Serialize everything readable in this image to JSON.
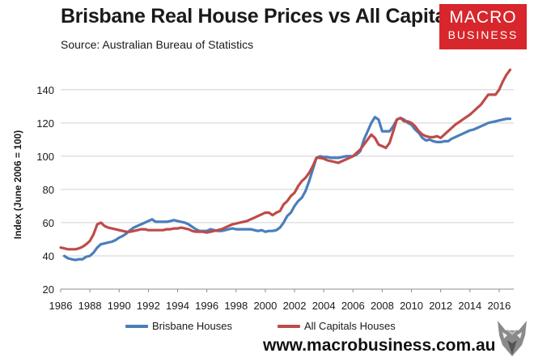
{
  "header": {
    "title": "Brisbane Real House Prices vs All Capitals",
    "subtitle": "Source: Australian Bureau of Statistics"
  },
  "logo": {
    "line1": "MACRO",
    "line2": "BUSINESS"
  },
  "footer": {
    "website": "www.macrobusiness.com.au"
  },
  "colors": {
    "brisbane": "#4a7ebb",
    "capitals": "#be4b48",
    "logo_bg": "#d7262c"
  },
  "chart_data": {
    "type": "line",
    "title": "Brisbane Real House Prices vs All Capitals",
    "subtitle": "Source: Australian Bureau of Statistics",
    "ylabel": "Index (June 2006 = 100)",
    "xlabel": "",
    "xlim": [
      1986,
      2017
    ],
    "ylim": [
      20,
      155
    ],
    "y_ticks": [
      20,
      40,
      60,
      80,
      100,
      120,
      140
    ],
    "x_ticks": [
      1986,
      1988,
      1990,
      1992,
      1994,
      1996,
      1998,
      2000,
      2002,
      2004,
      2006,
      2008,
      2010,
      2012,
      2014,
      2016
    ],
    "grid": "horizontal",
    "legend_position": "bottom",
    "series": [
      {
        "name": "Brisbane Houses",
        "color": "#4a7ebb",
        "x": [
          1986.25,
          1986.5,
          1986.75,
          1987.0,
          1987.25,
          1987.5,
          1987.75,
          1988.0,
          1988.25,
          1988.5,
          1988.75,
          1989.0,
          1989.25,
          1989.5,
          1989.75,
          1990.0,
          1990.25,
          1990.5,
          1990.75,
          1991.0,
          1991.25,
          1991.5,
          1991.75,
          1992.0,
          1992.25,
          1992.5,
          1992.75,
          1993.0,
          1993.25,
          1993.5,
          1993.75,
          1994.0,
          1994.25,
          1994.5,
          1994.75,
          1995.0,
          1995.25,
          1995.5,
          1995.75,
          1996.0,
          1996.25,
          1996.5,
          1996.75,
          1997.0,
          1997.25,
          1997.5,
          1997.75,
          1998.0,
          1998.25,
          1998.5,
          1998.75,
          1999.0,
          1999.25,
          1999.5,
          1999.75,
          2000.0,
          2000.25,
          2000.5,
          2000.75,
          2001.0,
          2001.25,
          2001.5,
          2001.75,
          2002.0,
          2002.25,
          2002.5,
          2002.75,
          2003.0,
          2003.25,
          2003.5,
          2003.75,
          2004.0,
          2004.25,
          2004.5,
          2004.75,
          2005.0,
          2005.25,
          2005.5,
          2005.75,
          2006.0,
          2006.25,
          2006.5,
          2006.75,
          2007.0,
          2007.25,
          2007.5,
          2007.75,
          2008.0,
          2008.25,
          2008.5,
          2008.75,
          2009.0,
          2009.25,
          2009.5,
          2009.75,
          2010.0,
          2010.25,
          2010.5,
          2010.75,
          2011.0,
          2011.25,
          2011.5,
          2011.75,
          2012.0,
          2012.25,
          2012.5,
          2012.75,
          2013.0,
          2013.25,
          2013.5,
          2013.75,
          2014.0,
          2014.25,
          2014.5,
          2014.75,
          2015.0,
          2015.25,
          2015.5,
          2015.75,
          2016.0,
          2016.25,
          2016.5,
          2016.75
        ],
        "values": [
          40,
          38.5,
          38,
          37.5,
          38,
          38,
          39.5,
          40,
          42,
          45,
          47,
          47.5,
          48,
          48.5,
          49.5,
          51,
          52,
          53.5,
          55.5,
          57,
          58,
          59,
          60,
          61,
          62,
          60.5,
          60.5,
          60.5,
          60.5,
          61,
          61.5,
          61,
          60.5,
          60,
          59,
          57.5,
          56,
          55,
          55,
          55,
          56,
          55.5,
          55,
          55,
          55.5,
          56,
          56.5,
          56,
          56,
          56,
          56,
          56,
          55.5,
          55,
          55.5,
          54.5,
          55,
          55,
          55.5,
          57,
          60,
          64,
          66,
          70,
          73,
          75,
          79,
          85,
          92,
          99,
          100,
          99.5,
          99.5,
          99,
          99,
          99,
          99.5,
          100,
          100,
          100,
          101,
          103,
          110,
          115,
          120,
          123.5,
          122,
          115,
          115,
          115,
          118,
          122,
          123,
          122,
          120,
          119,
          116,
          114,
          111,
          109.5,
          110,
          109,
          108.5,
          108.5,
          109,
          109,
          110.5,
          111.5,
          112.5,
          113.5,
          114.5,
          115.5,
          116,
          117,
          118,
          119,
          120,
          120.5,
          121,
          121.5,
          122,
          122.5,
          122.5
        ],
        "end_note": ""
      },
      {
        "name": "All Capitals Houses",
        "color": "#be4b48",
        "x": [
          1986.0,
          1986.25,
          1986.5,
          1986.75,
          1987.0,
          1987.25,
          1987.5,
          1987.75,
          1988.0,
          1988.25,
          1988.5,
          1988.75,
          1989.0,
          1989.25,
          1989.5,
          1989.75,
          1990.0,
          1990.25,
          1990.5,
          1990.75,
          1991.0,
          1991.25,
          1991.5,
          1991.75,
          1992.0,
          1992.25,
          1992.5,
          1992.75,
          1993.0,
          1993.25,
          1993.5,
          1993.75,
          1994.0,
          1994.25,
          1994.5,
          1994.75,
          1995.0,
          1995.25,
          1995.5,
          1995.75,
          1996.0,
          1996.25,
          1996.5,
          1996.75,
          1997.0,
          1997.25,
          1997.5,
          1997.75,
          1998.0,
          1998.25,
          1998.5,
          1998.75,
          1999.0,
          1999.25,
          1999.5,
          1999.75,
          2000.0,
          2000.25,
          2000.5,
          2000.75,
          2001.0,
          2001.25,
          2001.5,
          2001.75,
          2002.0,
          2002.25,
          2002.5,
          2002.75,
          2003.0,
          2003.25,
          2003.5,
          2003.75,
          2004.0,
          2004.25,
          2004.5,
          2004.75,
          2005.0,
          2005.25,
          2005.5,
          2005.75,
          2006.0,
          2006.25,
          2006.5,
          2006.75,
          2007.0,
          2007.25,
          2007.5,
          2007.75,
          2008.0,
          2008.25,
          2008.5,
          2008.75,
          2009.0,
          2009.25,
          2009.5,
          2009.75,
          2010.0,
          2010.25,
          2010.5,
          2010.75,
          2011.0,
          2011.25,
          2011.5,
          2011.75,
          2012.0,
          2012.25,
          2012.5,
          2012.75,
          2013.0,
          2013.25,
          2013.5,
          2013.75,
          2014.0,
          2014.25,
          2014.5,
          2014.75,
          2015.0,
          2015.25,
          2015.5,
          2015.75,
          2016.0,
          2016.25,
          2016.5,
          2016.75
        ],
        "values": [
          45,
          44.5,
          44,
          44,
          44,
          44.5,
          45.5,
          47,
          49,
          53,
          59,
          60,
          58,
          57,
          56.5,
          56,
          55.5,
          55,
          54.5,
          54.5,
          55,
          55.5,
          56,
          56,
          55.5,
          55.5,
          55.5,
          55.5,
          55.5,
          56,
          56,
          56.5,
          56.5,
          57,
          56.5,
          56,
          55,
          54.5,
          54.5,
          54.5,
          54,
          54.5,
          55,
          55.5,
          56,
          57,
          58,
          59,
          59.5,
          60,
          60.5,
          61,
          62,
          63,
          64,
          65,
          66,
          66,
          64.5,
          66,
          67,
          71,
          73,
          76,
          78,
          82,
          85,
          87,
          90,
          94,
          99,
          99,
          98.5,
          97.5,
          97,
          96.5,
          96,
          97,
          98,
          99,
          100,
          102,
          104,
          107,
          110,
          113,
          111,
          107,
          106,
          105,
          108,
          115,
          122,
          123,
          121,
          121,
          120,
          118,
          115,
          113,
          112,
          111.5,
          111.5,
          112,
          111,
          113,
          115,
          117,
          119,
          120.5,
          122,
          123.5,
          125,
          127,
          129,
          131,
          134,
          137,
          137,
          137,
          140,
          145,
          149,
          152
        ],
        "end_note": ""
      }
    ]
  }
}
